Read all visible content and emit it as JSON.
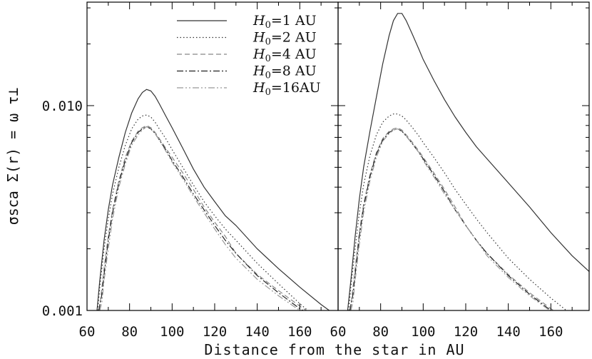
{
  "chart_data": [
    {
      "type": "line",
      "panel": "left",
      "xlabel": "Distance from the star in AU",
      "ylabel": "σsca Σ(r) = ω τ⊥",
      "xlim": [
        60,
        178
      ],
      "ylim": [
        0.001,
        0.032
      ],
      "yscale": "log",
      "x_ticks": [
        "60",
        "80",
        "100",
        "120",
        "140",
        "160"
      ],
      "y_ticks": [
        "0.010",
        "0.001"
      ],
      "legend": "top-right",
      "series": [
        {
          "name": "H0=1 AU",
          "style": "solid",
          "color": "#333333",
          "x": [
            64.7,
            66,
            68,
            70,
            72,
            75,
            78,
            81,
            84,
            86,
            88,
            90,
            92,
            94,
            97,
            100,
            105,
            110,
            115,
            120,
            125,
            130,
            140,
            150,
            160,
            170,
            178
          ],
          "y": [
            0.001,
            0.0014,
            0.0022,
            0.0031,
            0.0041,
            0.0056,
            0.0074,
            0.0092,
            0.0108,
            0.0116,
            0.012,
            0.0118,
            0.0111,
            0.0102,
            0.0089,
            0.0078,
            0.0062,
            0.0049,
            0.004,
            0.0034,
            0.0029,
            0.0026,
            0.002,
            0.0016,
            0.0013,
            0.00107,
            0.00093
          ]
        },
        {
          "name": "H0=2 AU",
          "style": "dotted",
          "color": "#333333",
          "x": [
            65,
            66,
            68,
            70,
            72,
            75,
            78,
            81,
            84,
            86,
            88,
            90,
            92,
            94,
            97,
            100,
            105,
            110,
            115,
            120,
            125,
            130,
            140,
            150,
            160,
            170
          ],
          "y": [
            0.001,
            0.0013,
            0.002,
            0.0028,
            0.0037,
            0.005,
            0.0064,
            0.0077,
            0.0086,
            0.0089,
            0.009,
            0.0088,
            0.0083,
            0.0077,
            0.0069,
            0.0061,
            0.005,
            0.0041,
            0.0034,
            0.0029,
            0.0025,
            0.0022,
            0.0017,
            0.00135,
            0.00108,
            0.00088
          ]
        },
        {
          "name": "H0=4 AU",
          "style": "dashed",
          "color": "#888888",
          "x": [
            65.8,
            67,
            68,
            70,
            72,
            75,
            78,
            81,
            84,
            86,
            88,
            90,
            92,
            94,
            97,
            100,
            105,
            110,
            115,
            120,
            125,
            130,
            140,
            150,
            160,
            167
          ],
          "y": [
            0.001,
            0.0013,
            0.0016,
            0.0023,
            0.0031,
            0.0043,
            0.0056,
            0.0067,
            0.0075,
            0.0078,
            0.008,
            0.0078,
            0.0074,
            0.0069,
            0.0062,
            0.0056,
            0.0047,
            0.0039,
            0.0032,
            0.0027,
            0.0023,
            0.0019,
            0.0015,
            0.00125,
            0.00105,
            0.00094
          ]
        },
        {
          "name": "H0=8 AU",
          "style": "dashdot",
          "color": "#222222",
          "x": [
            65.5,
            67,
            68,
            70,
            72,
            75,
            78,
            81,
            84,
            86,
            88,
            90,
            92,
            94,
            97,
            100,
            105,
            110,
            115,
            120,
            125,
            130,
            140,
            150,
            160,
            167
          ],
          "y": [
            0.001,
            0.0012,
            0.0015,
            0.0022,
            0.003,
            0.0042,
            0.0054,
            0.0066,
            0.0074,
            0.0077,
            0.0079,
            0.0077,
            0.0073,
            0.0068,
            0.0061,
            0.0054,
            0.0045,
            0.0037,
            0.0031,
            0.0026,
            0.0022,
            0.0019,
            0.00148,
            0.00122,
            0.00102,
            0.00093
          ]
        },
        {
          "name": "H0=16AU",
          "style": "dashdotdot",
          "color": "#999999",
          "x": [
            66,
            67,
            68,
            70,
            72,
            75,
            78,
            81,
            84,
            86,
            88,
            90,
            92,
            94,
            97,
            100,
            105,
            110,
            115,
            120,
            125,
            130,
            140,
            150,
            160,
            167
          ],
          "y": [
            0.001,
            0.0011,
            0.0014,
            0.002,
            0.0028,
            0.004,
            0.0052,
            0.0064,
            0.0072,
            0.0076,
            0.0079,
            0.0077,
            0.0073,
            0.0068,
            0.006,
            0.0053,
            0.0044,
            0.0036,
            0.003,
            0.0025,
            0.0021,
            0.0018,
            0.00142,
            0.00118,
            0.001,
            0.00092
          ]
        }
      ]
    },
    {
      "type": "line",
      "panel": "right",
      "xlabel": "Distance from the star in AU",
      "xlim": [
        60,
        178
      ],
      "ylim": [
        0.001,
        0.032
      ],
      "yscale": "log",
      "x_ticks": [
        "60",
        "80",
        "100",
        "120",
        "140",
        "160"
      ],
      "series": [
        {
          "name": "H0=1 AU",
          "style": "solid",
          "color": "#333333",
          "x": [
            64.5,
            66,
            68,
            70,
            72,
            75,
            78,
            81,
            84,
            86,
            88,
            90,
            92,
            95,
            98,
            100,
            105,
            110,
            115,
            120,
            125,
            130,
            140,
            150,
            160,
            170,
            178
          ],
          "y": [
            0.001,
            0.0014,
            0.0023,
            0.0035,
            0.005,
            0.0075,
            0.011,
            0.016,
            0.022,
            0.026,
            0.0282,
            0.0282,
            0.026,
            0.0222,
            0.0188,
            0.0168,
            0.0133,
            0.0107,
            0.0088,
            0.0074,
            0.0063,
            0.0055,
            0.0042,
            0.0032,
            0.0024,
            0.00185,
            0.00155
          ]
        },
        {
          "name": "H0=2 AU",
          "style": "dotted",
          "color": "#333333",
          "x": [
            65,
            66,
            68,
            70,
            72,
            75,
            78,
            81,
            84,
            86,
            88,
            90,
            92,
            95,
            98,
            100,
            105,
            110,
            115,
            120,
            125,
            130,
            140,
            150,
            160,
            170
          ],
          "y": [
            0.001,
            0.0013,
            0.002,
            0.003,
            0.0041,
            0.0057,
            0.0072,
            0.0083,
            0.0089,
            0.0091,
            0.0091,
            0.0089,
            0.0085,
            0.0078,
            0.0071,
            0.0066,
            0.0056,
            0.0047,
            0.0039,
            0.0033,
            0.0028,
            0.0024,
            0.0018,
            0.00142,
            0.00115,
            0.00095
          ]
        },
        {
          "name": "H0=4 AU",
          "style": "dashed",
          "color": "#888888",
          "x": [
            65.8,
            67,
            68,
            70,
            72,
            75,
            78,
            81,
            84,
            86,
            88,
            90,
            92,
            95,
            98,
            100,
            105,
            110,
            115,
            120,
            125,
            130,
            140,
            150,
            160,
            164
          ],
          "y": [
            0.001,
            0.0013,
            0.0016,
            0.0024,
            0.0033,
            0.0046,
            0.0059,
            0.0069,
            0.0075,
            0.0077,
            0.0078,
            0.0076,
            0.0072,
            0.0066,
            0.006,
            0.0056,
            0.0047,
            0.0039,
            0.0032,
            0.0026,
            0.0022,
            0.0019,
            0.0015,
            0.00122,
            0.00102,
            0.00096
          ]
        },
        {
          "name": "H0=8 AU",
          "style": "dashdot",
          "color": "#222222",
          "x": [
            65.5,
            67,
            68,
            70,
            72,
            75,
            78,
            81,
            84,
            86,
            88,
            90,
            92,
            95,
            98,
            100,
            105,
            110,
            115,
            120,
            125,
            130,
            140,
            150,
            160,
            164
          ],
          "y": [
            0.001,
            0.0012,
            0.0015,
            0.0023,
            0.0032,
            0.0045,
            0.0058,
            0.0068,
            0.0074,
            0.0076,
            0.0077,
            0.0075,
            0.0071,
            0.0065,
            0.0059,
            0.0055,
            0.0046,
            0.0038,
            0.0031,
            0.0026,
            0.0022,
            0.0019,
            0.00148,
            0.0012,
            0.001,
            0.00095
          ]
        },
        {
          "name": "H0=16AU",
          "style": "dashdotdot",
          "color": "#999999",
          "x": [
            66,
            67,
            68,
            70,
            72,
            75,
            78,
            81,
            84,
            86,
            88,
            90,
            92,
            95,
            98,
            100,
            105,
            110,
            115,
            120,
            125,
            130,
            140,
            150,
            160,
            164
          ],
          "y": [
            0.001,
            0.0011,
            0.0014,
            0.0021,
            0.003,
            0.0043,
            0.0056,
            0.0067,
            0.0073,
            0.0076,
            0.0077,
            0.0075,
            0.0071,
            0.0065,
            0.0059,
            0.0054,
            0.0045,
            0.0037,
            0.0031,
            0.0026,
            0.0022,
            0.00185,
            0.00145,
            0.00118,
            0.00099,
            0.00094
          ]
        }
      ]
    }
  ]
}
